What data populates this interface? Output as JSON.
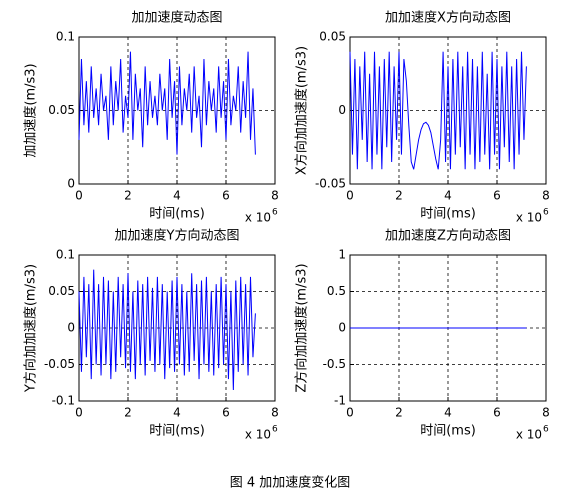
{
  "chart_data": [
    {
      "type": "line",
      "title": "加加速度动态图",
      "xlabel": "时间(ms)",
      "ylabel": "加加速度(m/s3)",
      "x_scale_label": "x 10",
      "x_scale_exponent": "6",
      "color": "#0000ff",
      "grid": true,
      "xlim": [
        0,
        8
      ],
      "xticks": [
        0,
        2,
        4,
        6,
        8
      ],
      "ylim": [
        0,
        0.1
      ],
      "yticks": [
        0,
        0.05,
        0.1
      ],
      "x": [
        0,
        0.1,
        0.2,
        0.3,
        0.4,
        0.5,
        0.6,
        0.7,
        0.8,
        0.9,
        1,
        1.1,
        1.2,
        1.3,
        1.4,
        1.5,
        1.6,
        1.7,
        1.8,
        1.9,
        2,
        2.1,
        2.2,
        2.3,
        2.4,
        2.5,
        2.6,
        2.7,
        2.8,
        2.9,
        3,
        3.1,
        3.2,
        3.3,
        3.4,
        3.5,
        3.6,
        3.7,
        3.8,
        3.9,
        4,
        4.1,
        4.2,
        4.3,
        4.4,
        4.5,
        4.6,
        4.7,
        4.8,
        4.9,
        5,
        5.1,
        5.2,
        5.3,
        5.4,
        5.5,
        5.6,
        5.7,
        5.8,
        5.9,
        6,
        6.1,
        6.2,
        6.3,
        6.4,
        6.5,
        6.6,
        6.7,
        6.8,
        6.9,
        7,
        7.1,
        7.2
      ],
      "values": [
        0.03,
        0.085,
        0.04,
        0.07,
        0.035,
        0.08,
        0.045,
        0.065,
        0.04,
        0.075,
        0.05,
        0.06,
        0.03,
        0.08,
        0.04,
        0.07,
        0.05,
        0.085,
        0.035,
        0.06,
        0.045,
        0.09,
        0.03,
        0.075,
        0.05,
        0.065,
        0.025,
        0.08,
        0.04,
        0.07,
        0.045,
        0.06,
        0.04,
        0.075,
        0.05,
        0.065,
        0.03,
        0.085,
        0.045,
        0.07,
        0.02,
        0.08,
        0.04,
        0.065,
        0.05,
        0.075,
        0.035,
        0.08,
        0.045,
        0.06,
        0.025,
        0.085,
        0.04,
        0.07,
        0.05,
        0.065,
        0.035,
        0.08,
        0.045,
        0.07,
        0.03,
        0.085,
        0.04,
        0.06,
        0.05,
        0.08,
        0.035,
        0.07,
        0.045,
        0.09,
        0.03,
        0.065,
        0.02
      ]
    },
    {
      "type": "line",
      "title": "加加速度X方向动态图",
      "xlabel": "时间(ms)",
      "ylabel": "X方向加加速度(m/s3)",
      "x_scale_label": "x 10",
      "x_scale_exponent": "6",
      "color": "#0000ff",
      "grid": true,
      "xlim": [
        0,
        8
      ],
      "xticks": [
        0,
        2,
        4,
        6,
        8
      ],
      "ylim": [
        -0.05,
        0.05
      ],
      "yticks": [
        -0.05,
        0,
        0.05
      ],
      "x": [
        0,
        0.1,
        0.2,
        0.3,
        0.4,
        0.5,
        0.6,
        0.7,
        0.8,
        0.9,
        1,
        1.1,
        1.2,
        1.3,
        1.4,
        1.5,
        1.6,
        1.7,
        1.8,
        1.9,
        2,
        2.1,
        2.2,
        2.3,
        2.4,
        2.5,
        2.6,
        2.7,
        2.8,
        2.9,
        3,
        3.1,
        3.2,
        3.3,
        3.4,
        3.5,
        3.6,
        3.7,
        3.8,
        3.9,
        4,
        4.1,
        4.2,
        4.3,
        4.4,
        4.5,
        4.6,
        4.7,
        4.8,
        4.9,
        5,
        5.1,
        5.2,
        5.3,
        5.4,
        5.5,
        5.6,
        5.7,
        5.8,
        5.9,
        6,
        6.1,
        6.2,
        6.3,
        6.4,
        6.5,
        6.6,
        6.7,
        6.8,
        6.9,
        7,
        7.1,
        7.2
      ],
      "values": [
        0.04,
        -0.03,
        0.035,
        -0.04,
        0.03,
        -0.02,
        0.04,
        -0.035,
        0.025,
        -0.04,
        0.04,
        -0.03,
        0.03,
        -0.04,
        0.035,
        -0.025,
        0.04,
        -0.035,
        0.03,
        -0.02,
        0.04,
        -0.03,
        0.035,
        0.02,
        -0.01,
        -0.035,
        -0.04,
        -0.03,
        -0.02,
        -0.013,
        -0.009,
        -0.008,
        -0.01,
        -0.015,
        -0.024,
        -0.033,
        -0.04,
        -0.02,
        0.04,
        -0.035,
        0.03,
        -0.04,
        0.035,
        -0.03,
        0.04,
        -0.025,
        0.03,
        -0.04,
        0.04,
        -0.03,
        0.035,
        -0.04,
        0.03,
        -0.035,
        0.04,
        -0.03,
        0.025,
        -0.04,
        0.04,
        -0.03,
        0.035,
        -0.04,
        0.03,
        -0.025,
        0.04,
        -0.035,
        0.03,
        -0.04,
        0.035,
        -0.03,
        0.04,
        -0.02,
        0.03
      ]
    },
    {
      "type": "line",
      "title": "加加速度Y方向动态图",
      "xlabel": "时间(ms)",
      "ylabel": "Y方向加加速度(m/s3)",
      "x_scale_label": "x 10",
      "x_scale_exponent": "6",
      "color": "#0000ff",
      "grid": true,
      "xlim": [
        0,
        8
      ],
      "xticks": [
        0,
        2,
        4,
        6,
        8
      ],
      "ylim": [
        -0.1,
        0.1
      ],
      "yticks": [
        -0.1,
        -0.05,
        0,
        0.05,
        0.1
      ],
      "x": [
        0,
        0.1,
        0.2,
        0.3,
        0.4,
        0.5,
        0.6,
        0.7,
        0.8,
        0.9,
        1,
        1.1,
        1.2,
        1.3,
        1.4,
        1.5,
        1.6,
        1.7,
        1.8,
        1.9,
        2,
        2.1,
        2.2,
        2.3,
        2.4,
        2.5,
        2.6,
        2.7,
        2.8,
        2.9,
        3,
        3.1,
        3.2,
        3.3,
        3.4,
        3.5,
        3.6,
        3.7,
        3.8,
        3.9,
        4,
        4.1,
        4.2,
        4.3,
        4.4,
        4.5,
        4.6,
        4.7,
        4.8,
        4.9,
        5,
        5.1,
        5.2,
        5.3,
        5.4,
        5.5,
        5.6,
        5.7,
        5.8,
        5.9,
        6,
        6.1,
        6.2,
        6.3,
        6.4,
        6.5,
        6.6,
        6.7,
        6.8,
        6.9,
        7,
        7.1,
        7.2
      ],
      "values": [
        0.05,
        -0.06,
        0.07,
        -0.04,
        0.06,
        -0.07,
        0.08,
        -0.05,
        0.06,
        -0.065,
        0.07,
        -0.05,
        0.065,
        -0.07,
        0.05,
        -0.06,
        0.07,
        -0.04,
        0.06,
        -0.055,
        0.075,
        -0.06,
        0.05,
        -0.07,
        0.065,
        -0.05,
        0.06,
        -0.065,
        0.07,
        -0.045,
        0.055,
        -0.06,
        0.07,
        -0.05,
        0.06,
        -0.07,
        0.05,
        -0.055,
        0.065,
        -0.06,
        0.07,
        -0.05,
        0.06,
        -0.065,
        0.05,
        -0.06,
        0.075,
        -0.045,
        0.06,
        -0.07,
        0.065,
        -0.05,
        0.07,
        -0.06,
        0.05,
        -0.065,
        0.06,
        -0.055,
        0.07,
        -0.05,
        0.06,
        -0.07,
        0.05,
        -0.085,
        0.065,
        -0.06,
        0.07,
        -0.05,
        0.06,
        -0.065,
        0.07,
        -0.04,
        0.02
      ]
    },
    {
      "type": "line",
      "title": "加加速度Z方向动态图",
      "xlabel": "时间(ms)",
      "ylabel": "Z方向加加速度(m/s3)",
      "x_scale_label": "x 10",
      "x_scale_exponent": "6",
      "color": "#0000ff",
      "grid": true,
      "xlim": [
        0,
        8
      ],
      "xticks": [
        0,
        2,
        4,
        6,
        8
      ],
      "ylim": [
        -1,
        1
      ],
      "yticks": [
        -1,
        -0.5,
        0,
        0.5,
        1
      ],
      "x": [
        0,
        7.2
      ],
      "values": [
        0,
        0
      ]
    }
  ],
  "caption": "图 4 加加速度变化图"
}
